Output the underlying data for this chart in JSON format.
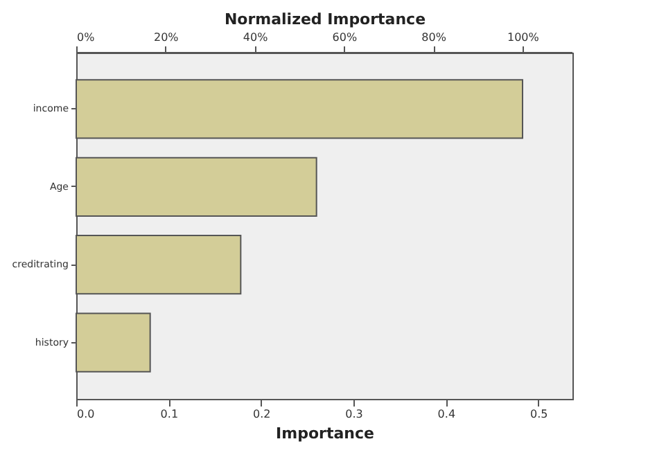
{
  "chart_data": {
    "type": "bar",
    "orientation": "horizontal",
    "x2label": "Normalized Importance",
    "xlabel": "Importance",
    "categories": [
      "income",
      "Age",
      "creditrating",
      "history"
    ],
    "values": [
      0.483,
      0.26,
      0.178,
      0.08
    ],
    "color": "#d3cd98",
    "xlim": [
      0,
      0.537
    ],
    "xticks": [
      {
        "value": 0,
        "label": "0.0"
      },
      0.1,
      0.2,
      0.3,
      0.4,
      0.5
    ],
    "x2lim": [
      0,
      111.2
    ],
    "x2ticks": [
      {
        "value": 0,
        "label": "0%"
      },
      {
        "value": 20,
        "label": "20%"
      },
      {
        "value": 40,
        "label": "40%"
      },
      {
        "value": 60,
        "label": "60%"
      },
      {
        "value": 80,
        "label": "80%"
      },
      {
        "value": 100,
        "label": "100%"
      }
    ],
    "grid": false
  }
}
